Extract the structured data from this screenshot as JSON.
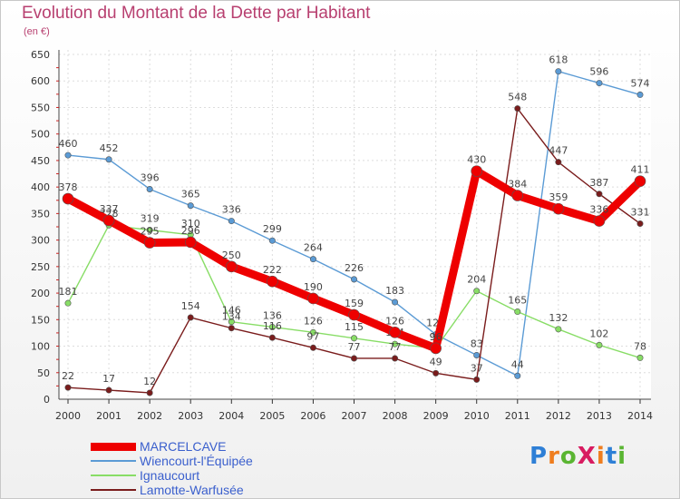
{
  "title": "Evolution du Montant de la Dette par Habitant",
  "subtitle": "(en €)",
  "logo": {
    "text": "ProXiti",
    "letters": [
      "P",
      "r",
      "o",
      "X",
      "i",
      "t",
      "i"
    ],
    "colors": [
      "#2e7fd6",
      "#ef7d1e",
      "#5ab532",
      "#d81b60",
      "#ef7d1e",
      "#2e7fd6",
      "#5ab532"
    ]
  },
  "chart_data": {
    "type": "line",
    "x": [
      "2000",
      "2001",
      "2002",
      "2003",
      "2004",
      "2005",
      "2006",
      "2007",
      "2008",
      "2009",
      "2010",
      "2011",
      "2012",
      "2013",
      "2014"
    ],
    "ylim": [
      0,
      650
    ],
    "yticks": [
      "0",
      "50",
      "100",
      "150",
      "200",
      "250",
      "300",
      "350",
      "400",
      "450",
      "500",
      "550",
      "600",
      "650"
    ],
    "grid": true,
    "legend_position": "bottom-left",
    "series": [
      {
        "name": "Wiencourt-l'Équipée",
        "color": "#5b9bd5",
        "values": [
          460,
          452,
          396,
          365,
          336,
          299,
          264,
          226,
          183,
          122,
          83,
          44,
          618,
          596,
          574
        ]
      },
      {
        "name": "Ignaucourt",
        "color": "#88dd66",
        "values": [
          181,
          328,
          319,
          310,
          146,
          136,
          126,
          115,
          104,
          96,
          204,
          165,
          132,
          102,
          78
        ]
      },
      {
        "name": "Lamotte-Warfusée",
        "color": "#7a1c1c",
        "values": [
          22,
          17,
          12,
          154,
          134,
          116,
          97,
          77,
          77,
          49,
          37,
          548,
          447,
          387,
          331
        ]
      },
      {
        "name": "MARCELCAVE",
        "color": "#ee0000",
        "values": [
          378,
          337,
          295,
          296,
          250,
          222,
          190,
          159,
          126,
          96,
          430,
          384,
          359,
          336,
          411
        ]
      }
    ]
  }
}
